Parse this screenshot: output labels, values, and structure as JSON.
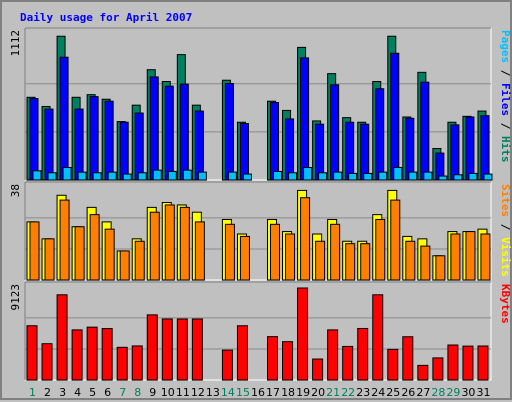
{
  "chart_data": {
    "type": "bar",
    "title": "Daily usage for April 2007",
    "x": [
      "1",
      "2",
      "3",
      "4",
      "5",
      "6",
      "7",
      "8",
      "9",
      "10",
      "11",
      "12",
      "13",
      "14",
      "15",
      "16",
      "17",
      "18",
      "19",
      "20",
      "21",
      "22",
      "23",
      "24",
      "25",
      "26",
      "27",
      "28",
      "29",
      "30",
      "31"
    ],
    "x_label_colors": [
      "#00805c",
      "#000000",
      "#000000",
      "#000000",
      "#000000",
      "#000000",
      "#00805c",
      "#00805c",
      "#000000",
      "#000000",
      "#000000",
      "#000000",
      "#000000",
      "#00805c",
      "#00805c",
      "#000000",
      "#000000",
      "#000000",
      "#000000",
      "#000000",
      "#00805c",
      "#00805c",
      "#000000",
      "#000000",
      "#000000",
      "#000000",
      "#000000",
      "#00805c",
      "#00805c",
      "#000000",
      "#000000"
    ],
    "panels": [
      {
        "name": "hits-files-pages",
        "ymax": 1112,
        "ymax_label": "1112",
        "ylabel_parts": [
          {
            "text": "Pages",
            "color": "#00c0ff"
          },
          {
            "text": " / ",
            "color": "#000000"
          },
          {
            "text": "Files",
            "color": "#0000ff"
          },
          {
            "text": " / ",
            "color": "#000000"
          },
          {
            "text": "Hits",
            "color": "#008060"
          }
        ],
        "series": [
          {
            "name": "Hits",
            "color": "#008060",
            "values": [
              630,
              560,
              1095,
              630,
              650,
              615,
              445,
              570,
              840,
              750,
              955,
              570,
              0,
              760,
              440,
              0,
              600,
              530,
              1010,
              450,
              810,
              475,
              440,
              750,
              1095,
              480,
              820,
              240,
              440,
              485,
              525
            ]
          },
          {
            "name": "Files",
            "color": "#0000ff",
            "values": [
              620,
              540,
              935,
              540,
              635,
              600,
              440,
              510,
              785,
              715,
              730,
              525,
              0,
              735,
              430,
              0,
              590,
              465,
              930,
              425,
              725,
              440,
              425,
              695,
              965,
              470,
              745,
              205,
              420,
              480,
              490
            ]
          },
          {
            "name": "Pages",
            "color": "#00c0ff",
            "values": [
              70,
              55,
              95,
              60,
              55,
              60,
              45,
              55,
              75,
              65,
              75,
              60,
              0,
              60,
              45,
              0,
              65,
              55,
              95,
              55,
              60,
              50,
              50,
              60,
              95,
              60,
              60,
              30,
              40,
              50,
              45
            ]
          }
        ]
      },
      {
        "name": "visits-sites",
        "ymax": 38,
        "ymax_label": "38",
        "ylabel_parts": [
          {
            "text": "Sites",
            "color": "#ff8000"
          },
          {
            "text": " / ",
            "color": "#000000"
          },
          {
            "text": "Visits",
            "color": "#ffff00"
          }
        ],
        "series": [
          {
            "name": "Visits",
            "color": "#ffff00",
            "values": [
              24,
              17,
              35,
              22,
              30,
              24,
              12,
              17,
              30,
              32,
              31,
              28,
              0,
              25,
              19,
              0,
              25,
              20,
              37,
              19,
              25,
              16,
              16,
              27,
              37,
              18,
              17,
              10,
              20,
              20,
              21
            ]
          },
          {
            "name": "Sites",
            "color": "#ff8000",
            "values": [
              24,
              17,
              33,
              22,
              27,
              21,
              12,
              16,
              28,
              31,
              30,
              24,
              0,
              23,
              18,
              0,
              23,
              19,
              34,
              16,
              23,
              15,
              15,
              25,
              33,
              16,
              14,
              10,
              19,
              20,
              19
            ]
          }
        ]
      },
      {
        "name": "kbytes",
        "ymax": 9123,
        "ymax_label": "9123",
        "ylabel_parts": [
          {
            "text": "KBytes",
            "color": "#ff0000"
          }
        ],
        "series": [
          {
            "name": "KBytes",
            "color": "#ff0000",
            "values": [
              5380,
              3600,
              8450,
              4970,
              5240,
              5100,
              3240,
              3380,
              6460,
              6050,
              6050,
              6050,
              0,
              2960,
              5380,
              0,
              4300,
              3800,
              9123,
              2080,
              4970,
              3330,
              5110,
              8450,
              3040,
              4290,
              1450,
              2190,
              3470,
              3360,
              3370
            ]
          }
        ]
      }
    ]
  }
}
